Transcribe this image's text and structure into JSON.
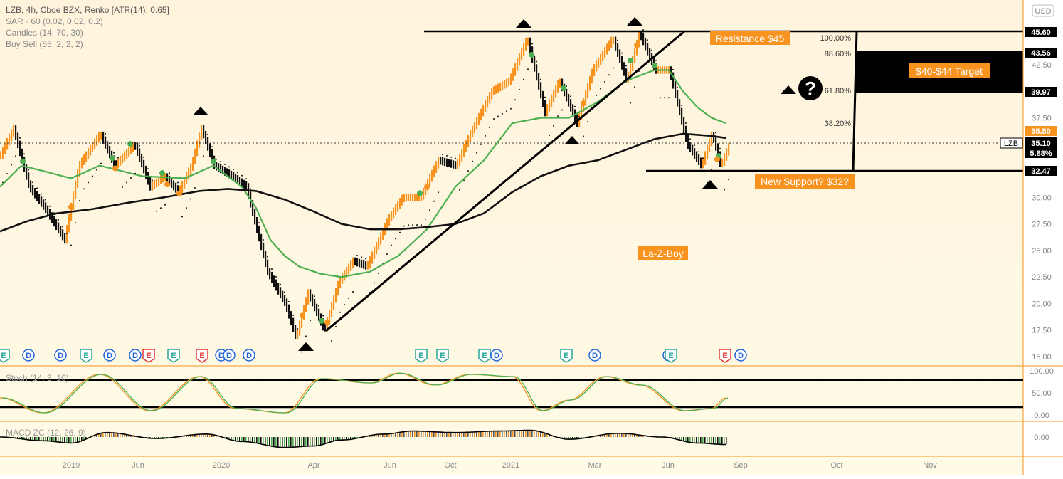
{
  "legend": {
    "title": "LZB, 4h, Cboe BZX, Renko [ATR(14), 0.65]",
    "lines": [
      "SAR · 60 (0.02, 0.02, 0.2)",
      "Candles (14, 70, 30)",
      "Buy Sell (55, 2, 2, 2)"
    ]
  },
  "currency": "USD",
  "symbol": "LZB",
  "colors": {
    "bg_top": "#fff4df",
    "bg_bottom": "#fffbe8",
    "up": "#f7931e",
    "down": "#111111",
    "ema_fast": "#4caf50",
    "ema_slow": "#111111",
    "label_bg": "#f7931e",
    "earnings": "#e53935",
    "dividend": "#1e63d8",
    "e_green": "#26a69a"
  },
  "annotations": {
    "resistance": "Resistance $45",
    "target": "$40-$44 Target",
    "support": "New Support? $32?",
    "company": "La-Z-Boy",
    "question": "?"
  },
  "fib": [
    "100.00%",
    "88.60%",
    "61.80%",
    "38.20%"
  ],
  "price_tags": {
    "p45": "45.60",
    "p43": "43.56",
    "p39": "39.97",
    "p35_5": "35.50",
    "last": "35.10",
    "pct": "5.88%",
    "p32": "32.47"
  },
  "indicators": {
    "stoch": "Stoch (14, 3, 10)",
    "macd": "MACD ZC (12, 26, 9)"
  },
  "chart_data": {
    "type": "line",
    "title": "LZB, 4h, Cboe BZX, Renko [ATR(14), 0.65]",
    "x_ticks": [
      "2019",
      "Jun",
      "2020",
      "Apr",
      "Jun",
      "Oct",
      "2021",
      "Mar",
      "Jun",
      "Sep",
      "Oct",
      "Nov"
    ],
    "y_ticks": [
      "42.50",
      "40.00",
      "37.50",
      "32.50",
      "30.00",
      "27.50",
      "25.00",
      "22.50",
      "20.00",
      "17.50",
      "15.00"
    ],
    "ylim": [
      15,
      47.5
    ],
    "stoch_ticks": [
      "100.00",
      "50.00",
      "0.00"
    ],
    "macd_ticks": [
      "0.00"
    ],
    "series": [
      {
        "name": "Renko close",
        "x": [
          0,
          18,
          40,
          62,
          90,
          110,
          140,
          160,
          188,
          210,
          230,
          250,
          268,
          282,
          300,
          325,
          345,
          375,
          400,
          415,
          432,
          455,
          475,
          495,
          515,
          545,
          565,
          590,
          615,
          640,
          660,
          690,
          715,
          740,
          765,
          785,
          810,
          832,
          860,
          880,
          898,
          920,
          940,
          965,
          985,
          1000,
          1012,
          1025
        ],
        "values": [
          34,
          36.5,
          31,
          29,
          26,
          33,
          36,
          33,
          35,
          31,
          32,
          30.5,
          33,
          36.5,
          33,
          32,
          31,
          23,
          20,
          16.8,
          21,
          17.5,
          22,
          24,
          23.5,
          28,
          30,
          30,
          33.5,
          33,
          36,
          40,
          41,
          45,
          38,
          41,
          37,
          42,
          45,
          41,
          45.5,
          42,
          42,
          35,
          33,
          36,
          33,
          35.1
        ]
      },
      {
        "name": "EMA fast",
        "x": [
          0,
          30,
          60,
          100,
          140,
          200,
          260,
          300,
          340,
          360,
          380,
          400,
          420,
          450,
          480,
          520,
          560,
          600,
          640,
          680,
          720,
          760,
          800,
          840,
          880,
          920,
          940,
          960,
          980,
          1000,
          1020
        ],
        "values": [
          31,
          33,
          32.5,
          31.8,
          33,
          32,
          31.8,
          33,
          31,
          29,
          26,
          24.5,
          23.5,
          22.8,
          22.5,
          23,
          24.5,
          27,
          31,
          33.5,
          37,
          37.5,
          37.5,
          39,
          41,
          42,
          42,
          40,
          38.5,
          37.5,
          37
        ]
      },
      {
        "name": "EMA slow",
        "x": [
          0,
          40,
          80,
          130,
          180,
          230,
          280,
          320,
          360,
          400,
          440,
          480,
          520,
          560,
          600,
          640,
          680,
          720,
          760,
          800,
          840,
          880,
          920,
          960,
          1000,
          1020
        ],
        "values": [
          26.8,
          27.8,
          28.5,
          28.9,
          29.5,
          30,
          30.6,
          30.8,
          30.6,
          29.8,
          28.7,
          27.5,
          27,
          27,
          27.2,
          27.5,
          28.5,
          30.5,
          32,
          33,
          33.5,
          34.5,
          35.5,
          36,
          35.8,
          35.6
        ]
      }
    ],
    "levels": [
      {
        "label": "Resistance $45",
        "value": 45.6
      },
      {
        "label": "New Support? $32?",
        "value": 32.47
      }
    ]
  }
}
